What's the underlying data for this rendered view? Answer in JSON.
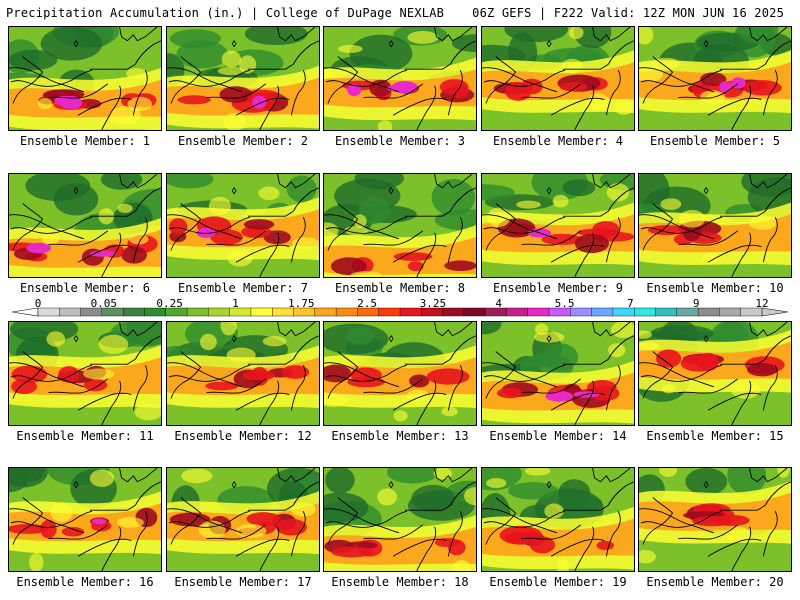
{
  "header": {
    "left_title": "Precipitation Accumulation (in.) | College of DuPage NEXLAB",
    "right_title": "06Z GEFS | F222 Valid: 12Z MON JUN 16 2025"
  },
  "map": {
    "type": "ensemble-precipitation-panels",
    "caption_prefix": "Ensemble Member:",
    "members": [
      {
        "id": "1",
        "label": "Ensemble Member: 1",
        "intensity": 0.62,
        "band_center": 0.72,
        "pink_spots": 2
      },
      {
        "id": "2",
        "label": "Ensemble Member: 2",
        "intensity": 0.45,
        "band_center": 0.7,
        "pink_spots": 1
      },
      {
        "id": "3",
        "label": "Ensemble Member: 3",
        "intensity": 0.7,
        "band_center": 0.62,
        "pink_spots": 3
      },
      {
        "id": "4",
        "label": "Ensemble Member: 4",
        "intensity": 0.55,
        "band_center": 0.55,
        "pink_spots": 0
      },
      {
        "id": "5",
        "label": "Ensemble Member: 5",
        "intensity": 0.68,
        "band_center": 0.55,
        "pink_spots": 2
      },
      {
        "id": "6",
        "label": "Ensemble Member: 6",
        "intensity": 0.6,
        "band_center": 0.75,
        "pink_spots": 2
      },
      {
        "id": "7",
        "label": "Ensemble Member: 7",
        "intensity": 0.62,
        "band_center": 0.55,
        "pink_spots": 1
      },
      {
        "id": "8",
        "label": "Ensemble Member: 8",
        "intensity": 0.35,
        "band_center": 0.82,
        "pink_spots": 0
      },
      {
        "id": "9",
        "label": "Ensemble Member: 9",
        "intensity": 0.66,
        "band_center": 0.6,
        "pink_spots": 1
      },
      {
        "id": "10",
        "label": "Ensemble Member: 10",
        "intensity": 0.4,
        "band_center": 0.6,
        "pink_spots": 0
      },
      {
        "id": "11",
        "label": "Ensemble Member: 11",
        "intensity": 0.5,
        "band_center": 0.55,
        "pink_spots": 0
      },
      {
        "id": "12",
        "label": "Ensemble Member: 12",
        "intensity": 0.55,
        "band_center": 0.55,
        "pink_spots": 0
      },
      {
        "id": "13",
        "label": "Ensemble Member: 13",
        "intensity": 0.3,
        "band_center": 0.55,
        "pink_spots": 0
      },
      {
        "id": "14",
        "label": "Ensemble Member: 14",
        "intensity": 0.6,
        "band_center": 0.7,
        "pink_spots": 2
      },
      {
        "id": "15",
        "label": "Ensemble Member: 15",
        "intensity": 0.58,
        "band_center": 0.4,
        "pink_spots": 0
      },
      {
        "id": "16",
        "label": "Ensemble Member: 16",
        "intensity": 0.58,
        "band_center": 0.55,
        "pink_spots": 1
      },
      {
        "id": "17",
        "label": "Ensemble Member: 17",
        "intensity": 0.62,
        "band_center": 0.55,
        "pink_spots": 0
      },
      {
        "id": "18",
        "label": "Ensemble Member: 18",
        "intensity": 0.45,
        "band_center": 0.78,
        "pink_spots": 0
      },
      {
        "id": "19",
        "label": "Ensemble Member: 19",
        "intensity": 0.48,
        "band_center": 0.7,
        "pink_spots": 0
      },
      {
        "id": "20",
        "label": "Ensemble Member: 20",
        "intensity": 0.5,
        "band_center": 0.45,
        "pink_spots": 0
      }
    ]
  },
  "colorbar": {
    "unit": "in.",
    "tick_labels": [
      "0",
      "0.05",
      "0.25",
      "1",
      "1.75",
      "2.5",
      "3.25",
      "4",
      "5.5",
      "7",
      "9",
      "12"
    ],
    "colors": [
      "#d9d9d9",
      "#bdbdbd",
      "#8c8c8c",
      "#5f8f5f",
      "#3f7f3f",
      "#2e8b2e",
      "#4fa830",
      "#7cc02a",
      "#a8d42a",
      "#d8e82a",
      "#ffff33",
      "#ffe033",
      "#ffc426",
      "#ffa51a",
      "#ff8a12",
      "#ff6a0a",
      "#ff3b0a",
      "#e8141e",
      "#c4101e",
      "#9e0a1e",
      "#7a0a24",
      "#a01e5a",
      "#c81e8c",
      "#e629c8",
      "#c859ff",
      "#9b8cff",
      "#6aa8ff",
      "#3cd8ff",
      "#2fe6e6",
      "#35c0c0",
      "#6aa8a8",
      "#8c8c8c",
      "#a8a8a8",
      "#c8c8c8"
    ],
    "palette": {
      "light_green": "#7cc02a",
      "green": "#2e8b2e",
      "dark_green": "#1f6b2a",
      "yellow": "#ffff33",
      "orange": "#ff9a1a",
      "red": "#e8141e",
      "dark_red": "#9e0a1e",
      "magenta": "#e629c8"
    }
  }
}
